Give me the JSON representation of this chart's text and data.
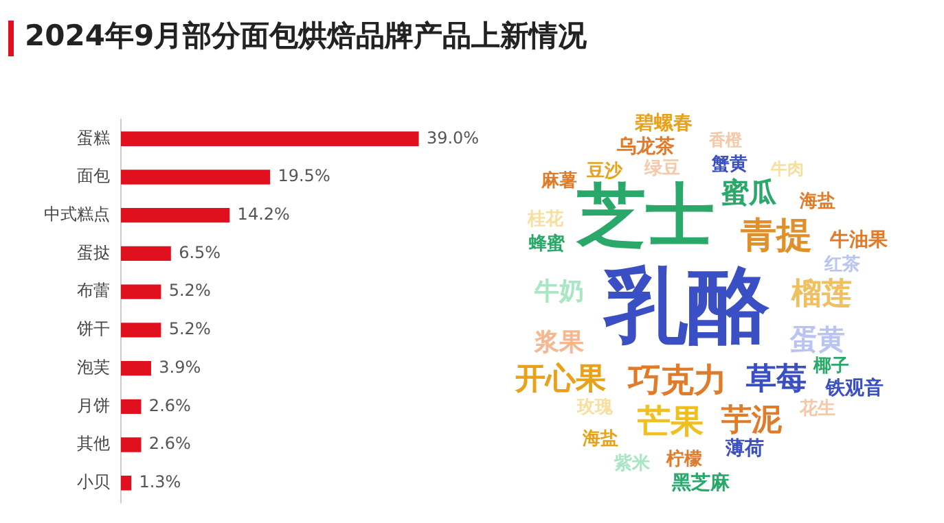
{
  "chart_data": [
    {
      "type": "bar",
      "title": "2024年9月部分面包烘焙品牌产品上新情况",
      "orientation": "horizontal",
      "categories": [
        "蛋糕",
        "面包",
        "中式糕点",
        "蛋挞",
        "布蕾",
        "饼干",
        "泡芙",
        "月饼",
        "其他",
        "小贝"
      ],
      "values": [
        39.0,
        19.5,
        14.2,
        6.5,
        5.2,
        5.2,
        3.9,
        2.6,
        2.6,
        1.3
      ],
      "color": "#e0101e",
      "value_labels": [
        "39.0%",
        "19.5%",
        "14.2%",
        "6.5%",
        "5.2%",
        "5.2%",
        "3.9%",
        "2.6%",
        "2.6%",
        "1.3%"
      ],
      "legend": false,
      "tick_labels": "y"
    },
    {
      "type": "other",
      "annotations": [
        "碧螺春",
        "香橙",
        "乌龙茶",
        "蟹黄",
        "豆沙",
        "绿豆",
        "牛肉",
        "麻薯",
        "芝士",
        "蜜瓜",
        "海盐",
        "桂花",
        "青提",
        "牛油果",
        "蜂蜜",
        "红茶",
        "乳酪",
        "牛奶",
        "榴莲",
        "浆果",
        "蛋黄",
        "开心果",
        "巧克力",
        "草莓",
        "椰子",
        "铁观音",
        "玫瑰",
        "芒果",
        "芋泥",
        "花生",
        "海盐",
        "薄荷",
        "紫米",
        "柠檬",
        "黑芝麻"
      ]
    }
  ]
}
